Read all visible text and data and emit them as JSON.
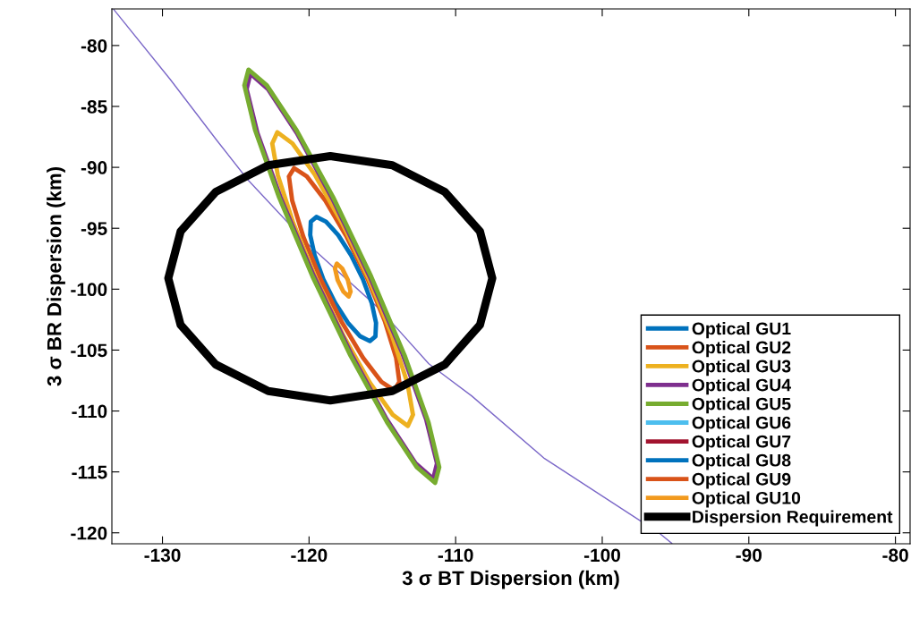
{
  "chart_data": {
    "type": "line",
    "xlabel": "3 σ BT Dispersion (km)",
    "ylabel": "3 σ BR Dispersion (km)",
    "xlim": [
      -133.45,
      -79.0
    ],
    "ylim": [
      -120.9,
      -77.0
    ],
    "xticks": [
      -130,
      -120,
      -110,
      -100,
      -90,
      -80
    ],
    "yticks": [
      -120,
      -115,
      -110,
      -105,
      -100,
      -95,
      -90,
      -85,
      -80
    ],
    "grid": false,
    "legend": "bottom right",
    "marker": "none",
    "line_style": "solid",
    "series": [
      {
        "color": "#7b68c8",
        "x": [
          -133.32,
          -129.47,
          -126.3,
          -124.19,
          -120.09,
          -115.12,
          -111.83,
          -108.91,
          -103.94,
          -96.06,
          -95.25
        ],
        "values": [
          -77.04,
          -82.78,
          -87.77,
          -91.0,
          -96.28,
          -101.71,
          -106.12,
          -108.76,
          -113.9,
          -120.07,
          -120.87
        ]
      },
      {
        "name": "Optical GU1",
        "color": "#0072bd",
        "x": [
          -119.92,
          -119.88,
          -119.5,
          -118.84,
          -118.01,
          -117.13,
          -116.33,
          -115.73,
          -115.43,
          null,
          -119.92,
          -119.62,
          -119.03,
          -118.22,
          -117.34,
          -116.51,
          -115.85,
          -115.47,
          -115.43
        ],
        "values": [
          -95.56,
          -94.46,
          -94.07,
          -94.46,
          -95.56,
          -97.21,
          -99.17,
          -101.12,
          -102.77,
          null,
          -95.56,
          -97.21,
          -99.17,
          -101.12,
          -102.77,
          -103.87,
          -104.26,
          -103.87,
          -102.77
        ]
      },
      {
        "name": "Optical GU2",
        "color": "#d95319",
        "x": [
          -121.37,
          -121.02,
          -120.15,
          -118.89,
          -117.44,
          -116.0,
          -114.82,
          -114.06,
          -113.84,
          null,
          -121.37,
          -121.15,
          -120.39,
          -119.21,
          -117.78,
          -116.32,
          -115.06,
          -114.19,
          -113.84
        ],
        "values": [
          -90.75,
          -90.06,
          -90.75,
          -92.73,
          -95.69,
          -99.18,
          -102.67,
          -105.63,
          -107.61,
          null,
          -90.75,
          -92.73,
          -95.69,
          -99.18,
          -102.67,
          -105.63,
          -107.61,
          -108.3,
          -107.61
        ]
      },
      {
        "name": "Optical GU3",
        "color": "#edb120",
        "x": [
          -122.51,
          -122.16,
          -121.13,
          -119.58,
          -117.75,
          -115.91,
          -114.34,
          -113.29,
          -112.91,
          null,
          -122.51,
          -122.13,
          -121.08,
          -119.51,
          -117.67,
          -115.84,
          -114.29,
          -113.26,
          -112.91
        ],
        "values": [
          -88.04,
          -87.12,
          -88.04,
          -90.65,
          -94.56,
          -99.18,
          -103.79,
          -107.7,
          -110.31,
          null,
          -88.04,
          -90.65,
          -94.56,
          -99.18,
          -103.79,
          -107.7,
          -110.31,
          -111.23,
          -110.31
        ]
      },
      {
        "name": "Optical GU4",
        "color": "#7e2f8e",
        "x": [
          -124.26,
          -124.0,
          -122.8,
          -120.83,
          -118.4,
          -115.87,
          -113.62,
          -112.01,
          -111.27,
          null,
          -124.26,
          -123.52,
          -121.91,
          -119.67,
          -117.13,
          -114.7,
          -112.73,
          -111.53,
          -111.27
        ],
        "values": [
          -83.58,
          -82.32,
          -83.58,
          -87.19,
          -92.58,
          -98.94,
          -105.31,
          -110.69,
          -114.3,
          null,
          -83.58,
          -87.19,
          -92.58,
          -98.94,
          -105.31,
          -110.69,
          -114.3,
          -115.56,
          -114.3
        ]
      },
      {
        "name": "Optical GU5",
        "color": "#77ac30",
        "x": [
          -124.41,
          -124.13,
          -122.88,
          -120.85,
          -118.36,
          -115.77,
          -113.48,
          -111.85,
          -111.12,
          null,
          -124.41,
          -123.68,
          -122.05,
          -119.77,
          -117.18,
          -114.68,
          -112.65,
          -111.4,
          -111.12
        ],
        "values": [
          -83.27,
          -81.98,
          -83.27,
          -86.95,
          -92.44,
          -98.94,
          -105.44,
          -110.93,
          -114.61,
          null,
          -83.27,
          -86.95,
          -92.44,
          -98.94,
          -105.44,
          -110.93,
          -114.61,
          -115.9,
          -114.61
        ]
      },
      {
        "name": "Optical GU6",
        "color": "#4dbeee"
      },
      {
        "name": "Optical GU7",
        "color": "#a2142f"
      },
      {
        "name": "Optical GU8",
        "color": "#0072bd"
      },
      {
        "name": "Optical GU9",
        "color": "#d95319"
      },
      {
        "name": "Optical GU10",
        "color": "#f29a1e",
        "x": [
          -118.23,
          -118.1,
          -117.74,
          -117.35,
          -117.17,
          null,
          -118.23,
          -118.05,
          -117.66,
          -117.3,
          -117.17
        ],
        "values": [
          -98.3,
          -97.9,
          -98.3,
          -99.25,
          -100.2,
          null,
          -98.3,
          -99.25,
          -100.2,
          -100.6,
          -100.2
        ]
      },
      {
        "name": "Dispersion Requirement",
        "color": "#000000",
        "x": [
          -129.6,
          -128.76,
          -126.36,
          -122.78,
          -118.55,
          -114.32,
          -110.74,
          -108.34,
          -107.5,
          null,
          -129.6,
          -128.76,
          -126.36,
          -122.78,
          -118.55,
          -114.32,
          -110.74,
          -108.34,
          -107.5
        ],
        "values": [
          -99.1,
          -95.26,
          -92.01,
          -89.83,
          -89.07,
          -89.83,
          -92.01,
          -95.26,
          -99.1,
          null,
          -99.1,
          -102.94,
          -106.19,
          -108.37,
          -109.13,
          -108.37,
          -106.19,
          -102.94,
          -99.1
        ]
      }
    ]
  }
}
